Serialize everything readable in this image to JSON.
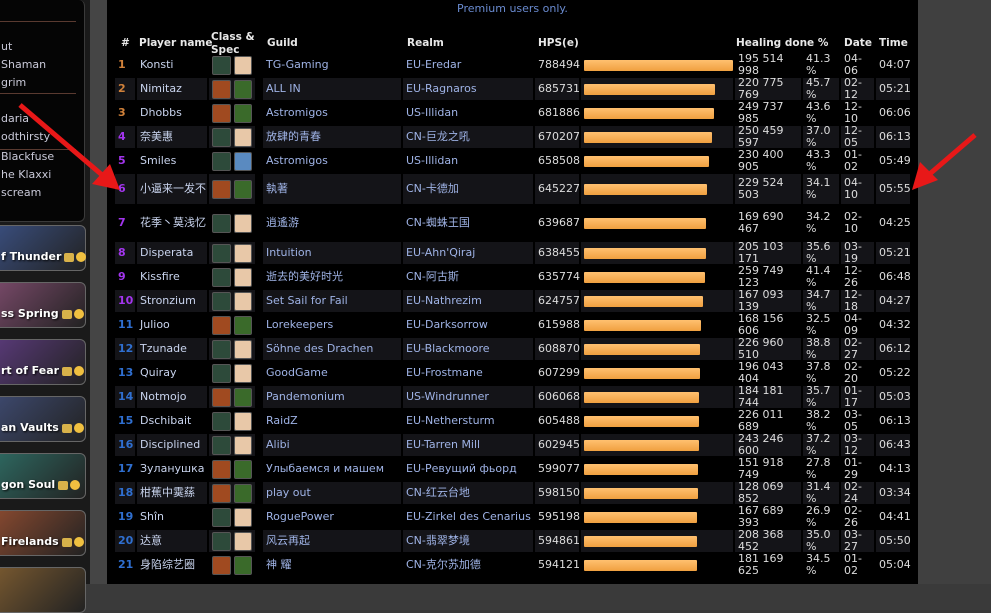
{
  "notice": "Premium users only.",
  "sidebar": {
    "items": [
      "ut",
      "Shaman",
      "grim",
      "daria",
      "odthirsty",
      "Blackfuse",
      "he Klaxxi",
      "scream"
    ],
    "raids": [
      {
        "label": "f Thunder",
        "color": "#3a4f80"
      },
      {
        "label": "ss Spring",
        "color": "#7a4a6a"
      },
      {
        "label": "rt of Fear",
        "color": "#5a3a7a"
      },
      {
        "label": "an Vaults",
        "color": "#3e4a70"
      },
      {
        "label": "gon Soul",
        "color": "#2e6a62"
      },
      {
        "label": "Firelands",
        "color": "#8a4a30"
      },
      {
        "label": "",
        "color": "#7a5a30"
      }
    ]
  },
  "table": {
    "headers": {
      "rank": "#",
      "name": "Player name",
      "class": "Class & Spec",
      "guild": "Guild",
      "realm": "Realm",
      "hps": "HPS(e)",
      "healing": "Healing done %",
      "date": "Date",
      "time": "Time"
    },
    "rank_colors": {
      "legendary": "#d0813a",
      "epic": "#a335ee",
      "rare": "#2f6fd0"
    },
    "class_icons": {
      "shaman": "#2d4a3a",
      "druid": "#a04a20",
      "spec_resto_shaman": "#e8c8a8",
      "spec_resto_druid": "#3a6a2a",
      "spec_ancestral": "#5a8ac0"
    },
    "rows": [
      {
        "rank": "1",
        "name": "Konsti",
        "cls": "shaman",
        "spec": "spec_resto_shaman",
        "guild": "TG-Gaming",
        "realm": "EU-Eredar",
        "hps": 788494,
        "healing": "195 514 998",
        "pct": "41.3 %",
        "date": "04-06",
        "time": "04:07"
      },
      {
        "rank": "2",
        "name": "Nimitaz",
        "cls": "druid",
        "spec": "spec_resto_druid",
        "guild": "ALL IN",
        "realm": "EU-Ragnaros",
        "hps": 685731,
        "healing": "220 775 769",
        "pct": "45.7 %",
        "date": "02-12",
        "time": "05:21"
      },
      {
        "rank": "3",
        "name": "Dhobbs",
        "cls": "druid",
        "spec": "spec_resto_druid",
        "guild": "Astromigos",
        "realm": "US-Illidan",
        "hps": 681886,
        "healing": "249 737 985",
        "pct": "43.6 %",
        "date": "12-10",
        "time": "06:06"
      },
      {
        "rank": "4",
        "name": "奈美惠",
        "cls": "shaman",
        "spec": "spec_resto_shaman",
        "guild": "放肆的青春",
        "realm": "CN-巨龙之吼",
        "hps": 670207,
        "healing": "250 459 597",
        "pct": "37.0 %",
        "date": "12-05",
        "time": "06:13"
      },
      {
        "rank": "5",
        "name": "Smiles",
        "cls": "shaman",
        "spec": "spec_ancestral",
        "guild": "Astromigos",
        "realm": "US-Illidan",
        "hps": 658508,
        "healing": "230 400 905",
        "pct": "43.3 %",
        "date": "01-02",
        "time": "05:49"
      },
      {
        "rank": "6",
        "name": "小逼来一发不",
        "cls": "druid",
        "spec": "spec_resto_druid",
        "guild": "執著",
        "realm": "CN-卡德加",
        "hps": 645227,
        "healing": "229 524 503",
        "pct": "34.1 %",
        "date": "04-10",
        "time": "05:55"
      },
      {
        "rank": "7",
        "name": "花季丶莫浅忆",
        "cls": "shaman",
        "spec": "spec_resto_shaman",
        "guild": "逍遙游",
        "realm": "CN-蜘蛛王国",
        "hps": 639687,
        "healing": "169 690 467",
        "pct": "34.2 %",
        "date": "02-10",
        "time": "04:25"
      },
      {
        "rank": "8",
        "name": "Disperata",
        "cls": "shaman",
        "spec": "spec_resto_shaman",
        "guild": "Intuition",
        "realm": "EU-Ahn'Qiraj",
        "hps": 638455,
        "healing": "205 103 171",
        "pct": "35.6 %",
        "date": "03-19",
        "time": "05:21"
      },
      {
        "rank": "9",
        "name": "Kissfire",
        "cls": "shaman",
        "spec": "spec_resto_shaman",
        "guild": "逝去的美好时光",
        "realm": "CN-阿古斯",
        "hps": 635774,
        "healing": "259 749 123",
        "pct": "41.4 %",
        "date": "12-26",
        "time": "06:48"
      },
      {
        "rank": "10",
        "name": "Stronzium",
        "cls": "shaman",
        "spec": "spec_resto_shaman",
        "guild": "Set Sail for Fail",
        "realm": "EU-Nathrezim",
        "hps": 624757,
        "healing": "167 093 139",
        "pct": "34.7 %",
        "date": "12-18",
        "time": "04:27"
      },
      {
        "rank": "11",
        "name": "Julioo",
        "cls": "druid",
        "spec": "spec_resto_druid",
        "guild": "Lorekeepers",
        "realm": "EU-Darksorrow",
        "hps": 615988,
        "healing": "168 156 606",
        "pct": "32.5 %",
        "date": "04-09",
        "time": "04:32"
      },
      {
        "rank": "12",
        "name": "Tzunade",
        "cls": "shaman",
        "spec": "spec_resto_shaman",
        "guild": "Söhne des Drachen",
        "realm": "EU-Blackmoore",
        "hps": 608870,
        "healing": "226 960 510",
        "pct": "38.8 %",
        "date": "02-27",
        "time": "06:12"
      },
      {
        "rank": "13",
        "name": "Quiray",
        "cls": "shaman",
        "spec": "spec_resto_shaman",
        "guild": "GoodGame",
        "realm": "EU-Frostmane",
        "hps": 607299,
        "healing": "196 043 404",
        "pct": "37.8 %",
        "date": "02-20",
        "time": "05:22"
      },
      {
        "rank": "14",
        "name": "Notmojo",
        "cls": "druid",
        "spec": "spec_resto_druid",
        "guild": "Pandemonium",
        "realm": "US-Windrunner",
        "hps": 606068,
        "healing": "184 181 744",
        "pct": "35.7 %",
        "date": "01-17",
        "time": "05:03"
      },
      {
        "rank": "15",
        "name": "Dschibait",
        "cls": "shaman",
        "spec": "spec_resto_shaman",
        "guild": "RaidZ",
        "realm": "EU-Nethersturm",
        "hps": 605488,
        "healing": "226 011 689",
        "pct": "38.2 %",
        "date": "03-05",
        "time": "06:13"
      },
      {
        "rank": "16",
        "name": "Disciplined",
        "cls": "shaman",
        "spec": "spec_resto_shaman",
        "guild": "Alibi",
        "realm": "EU-Tarren Mill",
        "hps": 602945,
        "healing": "243 246 600",
        "pct": "37.2 %",
        "date": "03-12",
        "time": "06:43"
      },
      {
        "rank": "17",
        "name": "Зуланушка",
        "cls": "druid",
        "spec": "spec_resto_druid",
        "guild": "Улыбаемся и машем",
        "realm": "EU-Ревущий фьорд",
        "hps": 599077,
        "healing": "151 918 749",
        "pct": "27.8 %",
        "date": "01-29",
        "time": "04:13"
      },
      {
        "rank": "18",
        "name": "柑蕉中霙蕬",
        "cls": "druid",
        "spec": "spec_resto_druid",
        "guild": "play out",
        "realm": "CN-红云台地",
        "hps": 598150,
        "healing": "128 069 852",
        "pct": "31.4 %",
        "date": "02-24",
        "time": "03:34"
      },
      {
        "rank": "19",
        "name": "Shîn",
        "cls": "shaman",
        "spec": "spec_resto_shaman",
        "guild": "RoguePower",
        "realm": "EU-Zirkel des Cenarius",
        "hps": 595198,
        "healing": "167 689 393",
        "pct": "26.9 %",
        "date": "02-26",
        "time": "04:41"
      },
      {
        "rank": "20",
        "name": "达意",
        "cls": "shaman",
        "spec": "spec_resto_shaman",
        "guild": "风云再起",
        "realm": "CN-翡翠梦境",
        "hps": 594861,
        "healing": "208 368 452",
        "pct": "35.0 %",
        "date": "03-27",
        "time": "05:50"
      },
      {
        "rank": "21",
        "name": "身陷综艺圈",
        "cls": "druid",
        "spec": "spec_resto_druid",
        "guild": "神 耀",
        "realm": "CN-克尔苏加德",
        "hps": 594121,
        "healing": "181 169 625",
        "pct": "34.5 %",
        "date": "01-02",
        "time": "05:04"
      }
    ]
  },
  "arrow_color": "#e81818"
}
